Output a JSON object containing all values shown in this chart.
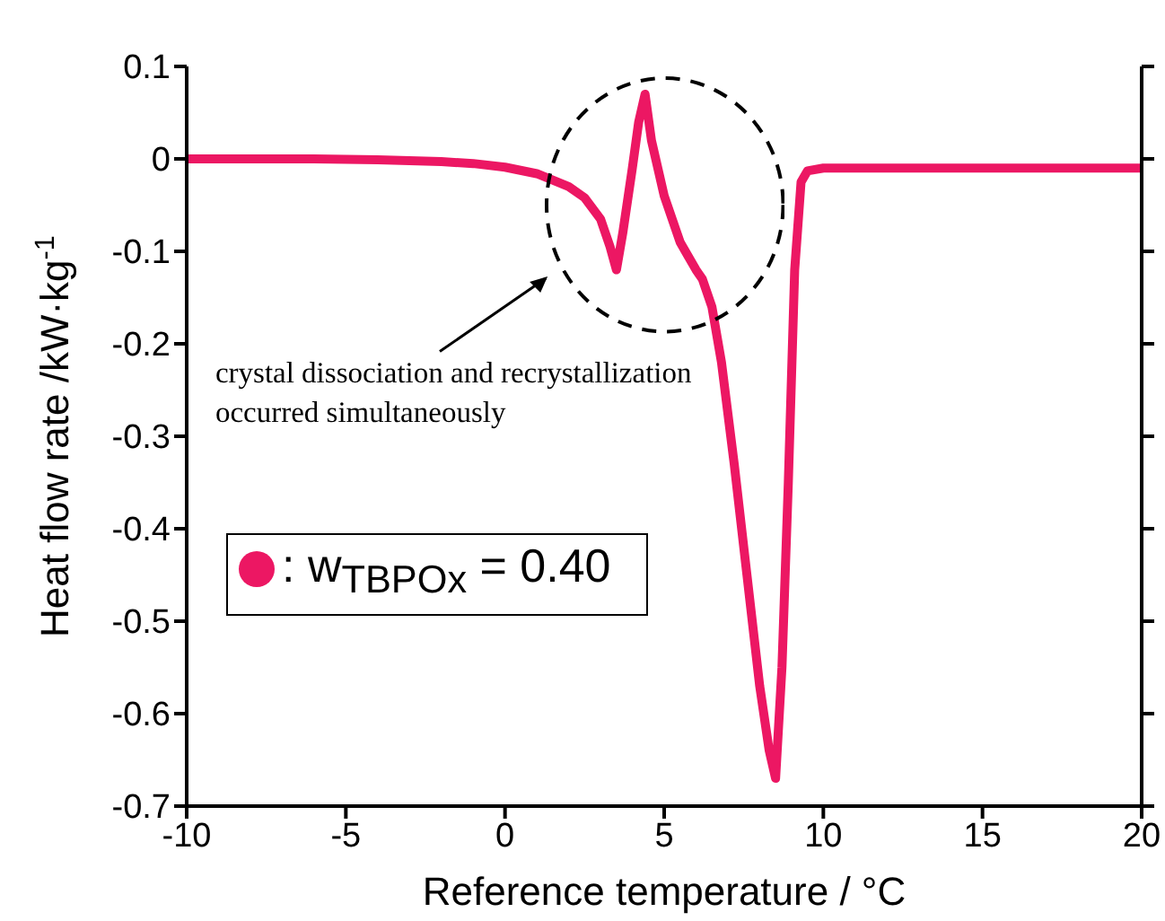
{
  "chart_data": {
    "type": "line",
    "xlabel": "Reference temperature / °C",
    "ylabel": "Heat flow rate /kW·kg$^{-1}$",
    "x": [
      -10,
      -6,
      -4,
      -2,
      -1,
      0,
      1,
      2,
      2.5,
      3,
      3.3,
      3.5,
      3.7,
      4,
      4.2,
      4.4,
      4.6,
      5,
      5.5,
      6,
      6.2,
      6.5,
      6.8,
      7.2,
      7.6,
      8,
      8.3,
      8.5,
      8.7,
      8.9,
      9.1,
      9.3,
      9.5,
      10,
      12,
      15,
      20
    ],
    "series": [
      {
        "name": ": w$_{TBPOx}$ = 0.40",
        "color": "#ec1763",
        "values": [
          0,
          0,
          -0.001,
          -0.003,
          -0.005,
          -0.009,
          -0.016,
          -0.03,
          -0.042,
          -0.065,
          -0.095,
          -0.12,
          -0.08,
          -0.01,
          0.04,
          0.07,
          0.02,
          -0.04,
          -0.09,
          -0.12,
          -0.13,
          -0.16,
          -0.22,
          -0.33,
          -0.45,
          -0.57,
          -0.64,
          -0.67,
          -0.55,
          -0.35,
          -0.12,
          -0.025,
          -0.013,
          -0.01,
          -0.01,
          -0.01,
          -0.01
        ]
      }
    ],
    "xlim": [
      -10,
      20
    ],
    "xticks": [
      -10,
      -5,
      0,
      5,
      10,
      15,
      20
    ],
    "ylim": [
      -0.7,
      0.1
    ],
    "yticks": [
      -0.7,
      -0.6,
      -0.5,
      -0.4,
      -0.3,
      -0.2,
      -0.1,
      0,
      0.1
    ],
    "grid": false,
    "legend": "bottom left",
    "marker": "none",
    "line_style": "solid",
    "annotations": [
      "crystal dissociation and recrystallization occurred simultaneously"
    ]
  }
}
